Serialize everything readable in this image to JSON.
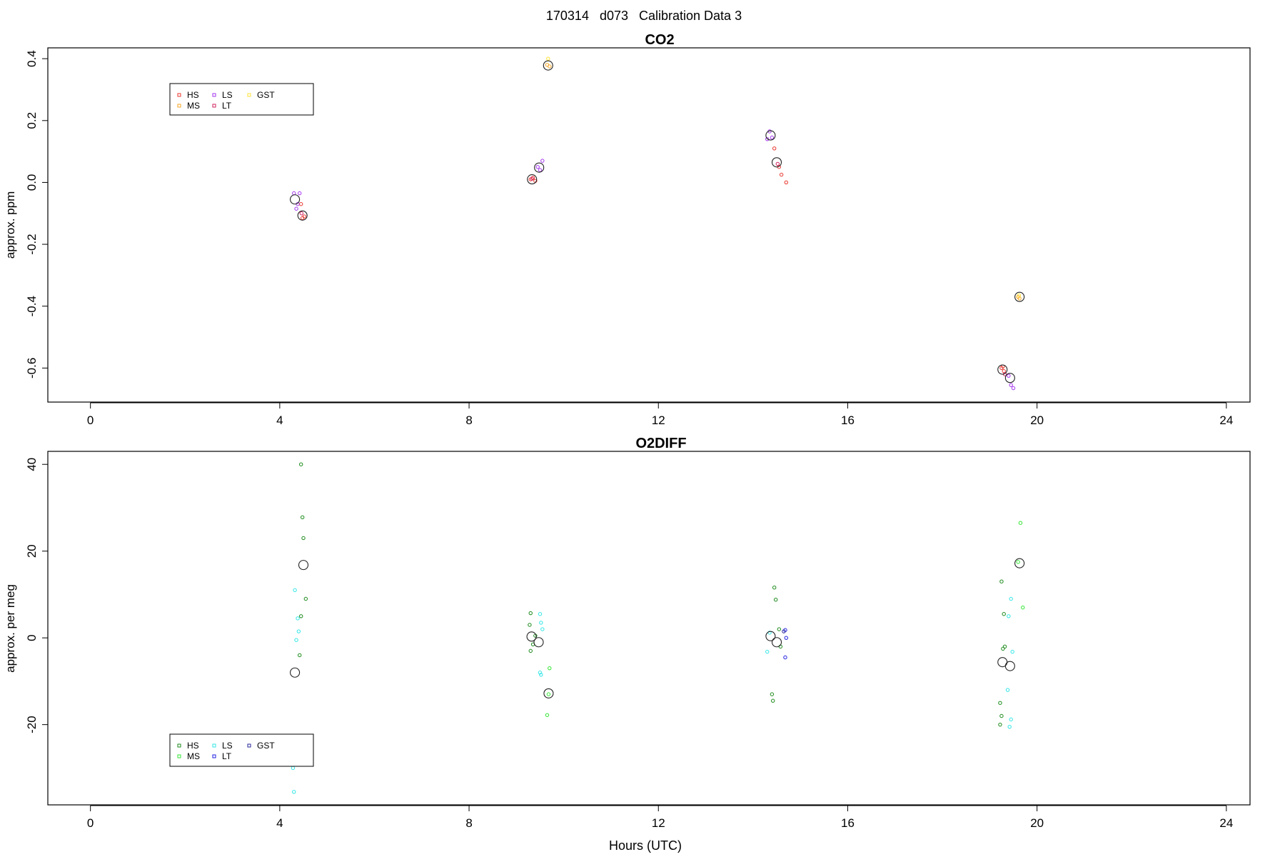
{
  "suptitle": "170314   d073   Calibration Data 3",
  "chart_data": [
    {
      "type": "scatter",
      "title": "CO2",
      "ylabel": "approx. ppm",
      "xlabel": "",
      "xlim": [
        -0.9,
        24.5
      ],
      "ylim": [
        -0.71,
        0.435
      ],
      "xticks": [
        0,
        4,
        8,
        12,
        16,
        20,
        24
      ],
      "yticks": [
        -0.6,
        -0.4,
        -0.2,
        0.0,
        0.2,
        0.4
      ],
      "ytick_labels": [
        "-0.6",
        "-0.4",
        "-0.2",
        "0.0",
        "0.2",
        "0.4"
      ],
      "legend": {
        "placement": "top-left",
        "entries": [
          {
            "label": "HS",
            "color": "#e8372f"
          },
          {
            "label": "MS",
            "color": "#f5a623"
          },
          {
            "label": "LS",
            "color": "#a335ee"
          },
          {
            "label": "LT",
            "color": "#d11f5c"
          },
          {
            "label": "GST",
            "color": "#ffe135"
          }
        ]
      },
      "series": [
        {
          "name": "HS",
          "color": "#e8372f",
          "points": [
            [
              4.45,
              -0.07
            ],
            [
              4.48,
              -0.115
            ],
            [
              4.52,
              -0.11
            ],
            [
              9.3,
              0.01
            ],
            [
              9.35,
              0.015
            ],
            [
              9.4,
              0.005
            ],
            [
              14.55,
              0.05
            ],
            [
              14.6,
              0.025
            ],
            [
              14.45,
              0.11
            ],
            [
              14.7,
              0.0
            ],
            [
              19.25,
              -0.6
            ],
            [
              19.3,
              -0.61
            ],
            [
              19.28,
              -0.595
            ]
          ]
        },
        {
          "name": "MS",
          "color": "#f5a623",
          "points": [
            [
              9.65,
              0.38
            ],
            [
              9.7,
              0.375
            ],
            [
              19.6,
              -0.37
            ],
            [
              19.63,
              -0.375
            ]
          ]
        },
        {
          "name": "LS",
          "color": "#a335ee",
          "points": [
            [
              4.3,
              -0.035
            ],
            [
              4.35,
              -0.085
            ],
            [
              4.38,
              -0.07
            ],
            [
              4.42,
              -0.035
            ],
            [
              9.5,
              0.04
            ],
            [
              9.55,
              0.07
            ],
            [
              9.45,
              0.05
            ],
            [
              14.3,
              0.14
            ],
            [
              14.35,
              0.165
            ],
            [
              14.4,
              0.145
            ],
            [
              19.45,
              -0.655
            ],
            [
              19.5,
              -0.665
            ],
            [
              19.4,
              -0.625
            ]
          ]
        },
        {
          "name": "LT",
          "color": "#d11f5c",
          "points": [
            [
              4.46,
              -0.1
            ],
            [
              9.33,
              0.012
            ],
            [
              14.52,
              0.06
            ],
            [
              19.32,
              -0.62
            ]
          ]
        },
        {
          "name": "GST",
          "color": "#ffe135",
          "points": [
            [
              9.67,
              0.4
            ],
            [
              19.62,
              -0.365
            ]
          ]
        }
      ],
      "means": [
        [
          4.32,
          -0.055
        ],
        [
          4.48,
          -0.107
        ],
        [
          9.33,
          0.01
        ],
        [
          9.48,
          0.048
        ],
        [
          9.67,
          0.378
        ],
        [
          14.37,
          0.152
        ],
        [
          14.5,
          0.065
        ],
        [
          19.27,
          -0.605
        ],
        [
          19.43,
          -0.632
        ],
        [
          19.63,
          -0.37
        ]
      ]
    },
    {
      "type": "scatter",
      "title": "O2DIFF",
      "ylabel": "approx. per meg",
      "xlabel": "Hours (UTC)",
      "xlim": [
        -0.9,
        24.5
      ],
      "ylim": [
        -38.5,
        43
      ],
      "xticks": [
        0,
        4,
        8,
        12,
        16,
        20,
        24
      ],
      "yticks": [
        -20,
        0,
        20,
        40
      ],
      "ytick_labels": [
        "-20",
        "0",
        "20",
        "40"
      ],
      "legend": {
        "placement": "bottom-left",
        "entries": [
          {
            "label": "HS",
            "color": "#1b8a1b"
          },
          {
            "label": "MS",
            "color": "#33e633"
          },
          {
            "label": "LS",
            "color": "#33e6e6"
          },
          {
            "label": "LT",
            "color": "#1f1fe0"
          },
          {
            "label": "GST",
            "color": "#27279a"
          }
        ]
      },
      "series": [
        {
          "name": "HS",
          "color": "#1b8a1b",
          "points": [
            [
              4.45,
              40
            ],
            [
              4.48,
              27.8
            ],
            [
              4.5,
              23
            ],
            [
              4.55,
              9
            ],
            [
              4.45,
              5
            ],
            [
              4.42,
              -4
            ],
            [
              9.3,
              5.7
            ],
            [
              9.28,
              3
            ],
            [
              9.35,
              -1.5
            ],
            [
              9.3,
              -3
            ],
            [
              9.4,
              0.5
            ],
            [
              14.45,
              11.6
            ],
            [
              14.48,
              8.8
            ],
            [
              14.55,
              2
            ],
            [
              14.58,
              -2
            ],
            [
              14.4,
              -13
            ],
            [
              14.42,
              -14.5
            ],
            [
              19.25,
              13
            ],
            [
              19.3,
              5.5
            ],
            [
              19.32,
              -2
            ],
            [
              19.28,
              -2.5
            ],
            [
              19.22,
              -15
            ],
            [
              19.25,
              -18
            ],
            [
              19.22,
              -20
            ]
          ]
        },
        {
          "name": "MS",
          "color": "#33e633",
          "points": [
            [
              9.7,
              -7
            ],
            [
              9.68,
              -13
            ],
            [
              9.65,
              -17.8
            ],
            [
              19.65,
              26.5
            ],
            [
              19.7,
              7
            ],
            [
              19.6,
              17.5
            ]
          ]
        },
        {
          "name": "LS",
          "color": "#33e6e6",
          "points": [
            [
              4.32,
              11
            ],
            [
              4.38,
              4.5
            ],
            [
              4.4,
              1.5
            ],
            [
              4.35,
              -0.5
            ],
            [
              4.28,
              -30
            ],
            [
              4.3,
              -35.5
            ],
            [
              9.5,
              5.5
            ],
            [
              9.52,
              3.5
            ],
            [
              9.55,
              2
            ],
            [
              9.5,
              -8
            ],
            [
              9.52,
              -8.5
            ],
            [
              14.3,
              -3.2
            ],
            [
              14.35,
              1.2
            ],
            [
              19.45,
              9
            ],
            [
              19.4,
              5
            ],
            [
              19.48,
              -3.2
            ],
            [
              19.38,
              -12
            ],
            [
              19.42,
              -20.5
            ],
            [
              19.45,
              -18.8
            ]
          ]
        },
        {
          "name": "LT",
          "color": "#1f1fe0",
          "points": [
            [
              14.68,
              1.8
            ],
            [
              14.7,
              0
            ],
            [
              14.68,
              -4.5
            ]
          ]
        },
        {
          "name": "GST",
          "color": "#27279a",
          "points": [
            [
              14.65,
              1.5
            ]
          ]
        }
      ],
      "means": [
        [
          4.32,
          -8
        ],
        [
          4.5,
          16.8
        ],
        [
          9.32,
          0.3
        ],
        [
          9.47,
          -1
        ],
        [
          9.68,
          -12.8
        ],
        [
          14.37,
          0.4
        ],
        [
          14.5,
          -1
        ],
        [
          19.27,
          -5.6
        ],
        [
          19.43,
          -6.5
        ],
        [
          19.63,
          17.2
        ]
      ]
    }
  ],
  "plots": [
    {
      "title": "CO2",
      "ylabel": "approx. ppm",
      "xlabel": "",
      "legend_labels": [
        "HS",
        "MS",
        "LS",
        "LT",
        "GST"
      ]
    },
    {
      "title": "O2DIFF",
      "ylabel": "approx. per meg",
      "xlabel": "Hours (UTC)",
      "legend_labels": [
        "HS",
        "MS",
        "LS",
        "LT",
        "GST"
      ]
    }
  ]
}
